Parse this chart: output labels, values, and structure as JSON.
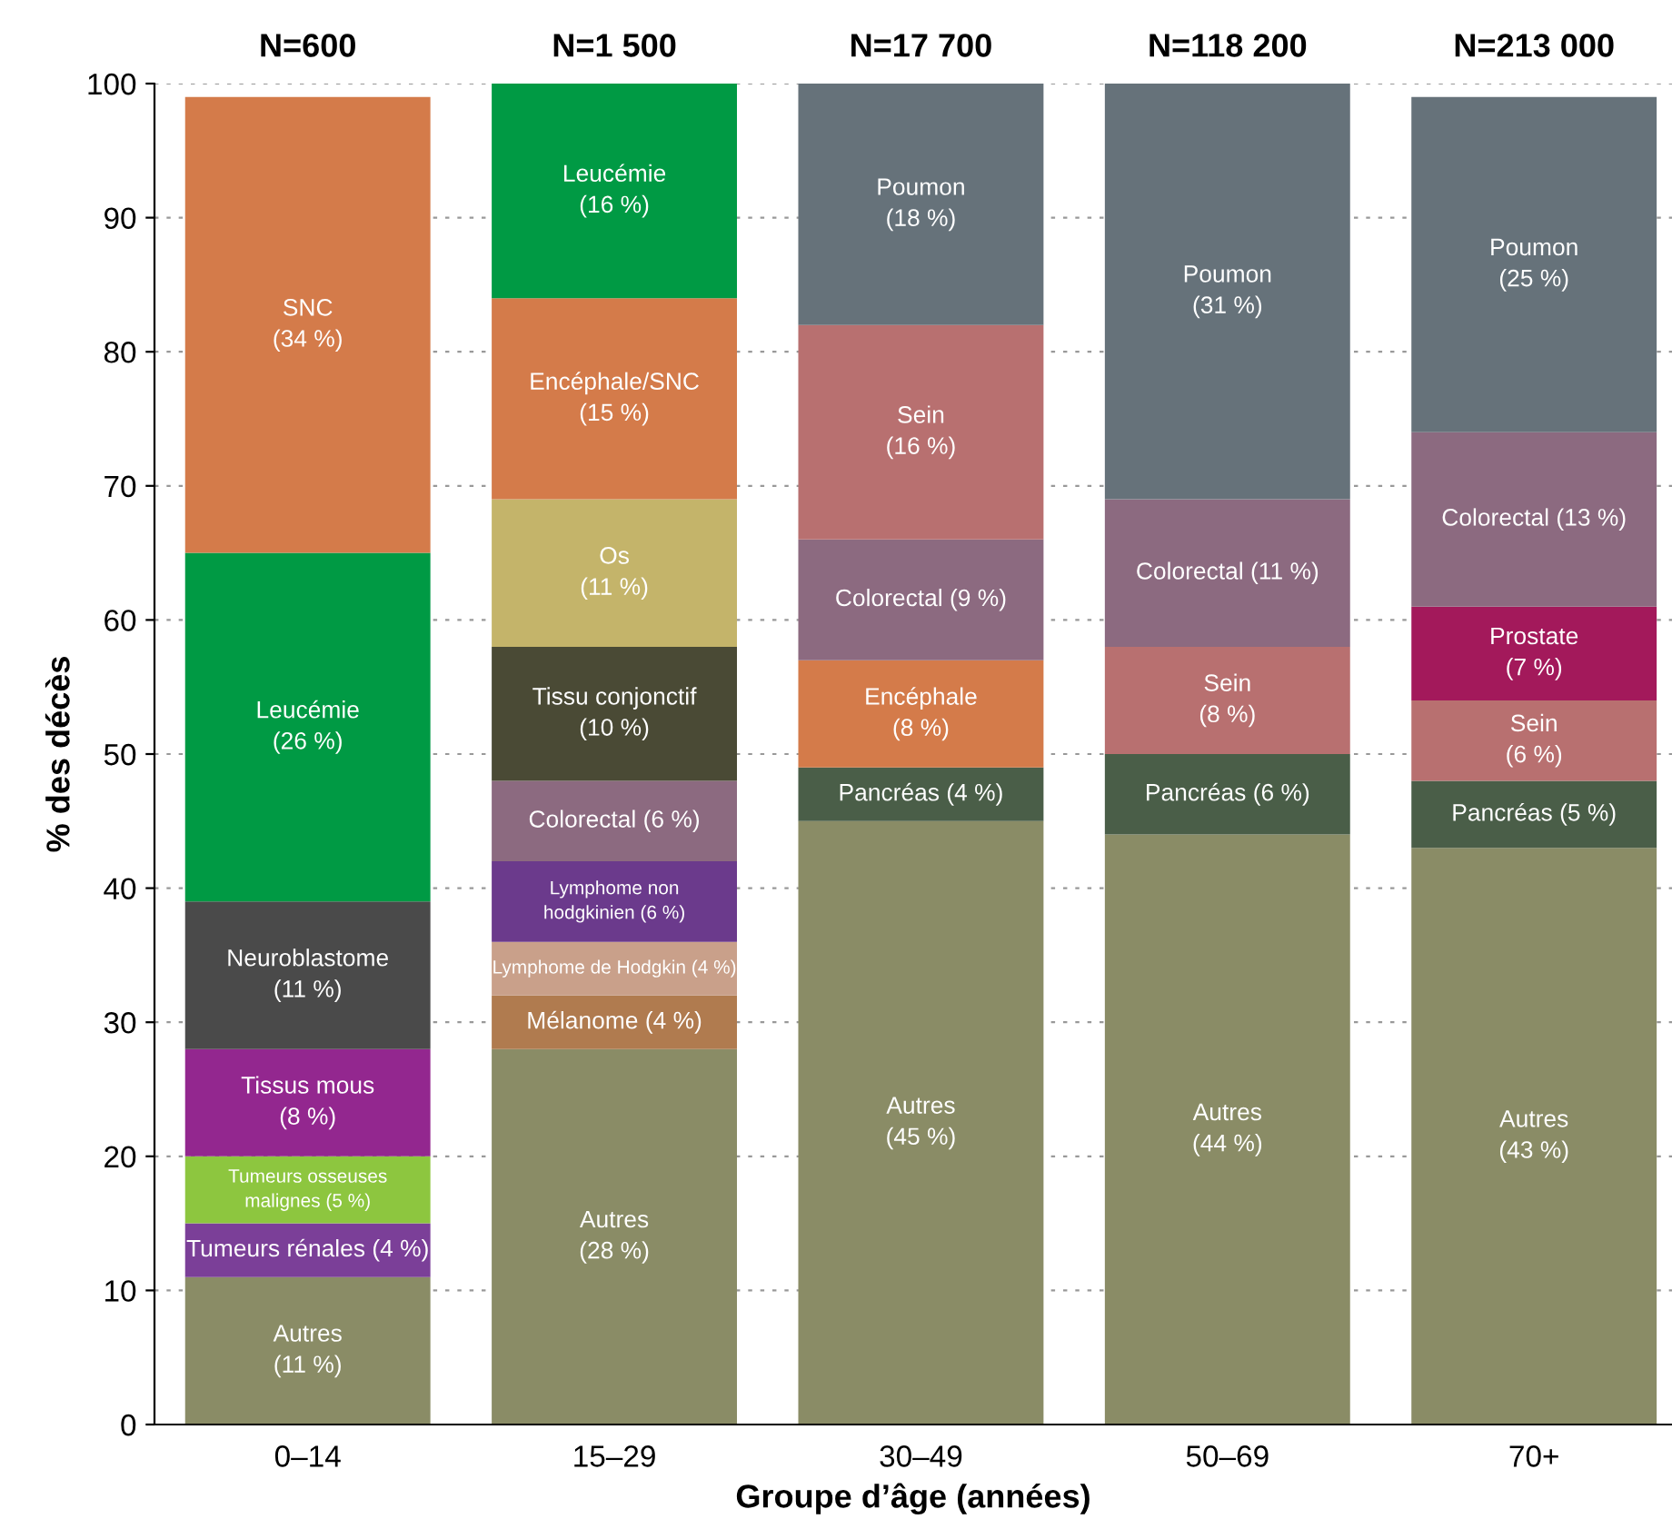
{
  "chart_data": {
    "type": "bar",
    "stacked": true,
    "categories": [
      "0–14",
      "15–29",
      "30–49",
      "50–69",
      "70+"
    ],
    "xlabel": "Groupe d’âge (années)",
    "ylabel": "% des décès",
    "ylim": [
      0,
      100
    ],
    "yticks": [
      0,
      10,
      20,
      30,
      40,
      50,
      60,
      70,
      80,
      90,
      100
    ],
    "grid": "y",
    "annotations": [
      "N=600",
      "N=1 500",
      "N=17 700",
      "N=118 200",
      "N=213 000"
    ],
    "series": [
      {
        "values": [
          11,
          28,
          45,
          44,
          43
        ],
        "colors": [
          "#8a8c66",
          "#8a8c66",
          "#8a8c66",
          "#8a8c66",
          "#8a8c66"
        ],
        "value_labels": [
          "Autres\n(11 %)",
          "Autres\n(28 %)",
          "Autres\n(45 %)",
          "Autres\n(44 %)",
          "Autres\n(43 %)"
        ]
      },
      {
        "values": [
          4,
          4,
          4,
          6,
          5
        ],
        "colors": [
          "#7b3f98",
          "#b07b4f",
          "#4a5e48",
          "#4a5e48",
          "#4a5e48"
        ],
        "value_labels": [
          "Tumeurs rénales (4 %)",
          "Mélanome (4 %)",
          "Pancréas (4 %)",
          "Pancréas (6 %)",
          "Pancréas (5 %)"
        ]
      },
      {
        "values": [
          5,
          4,
          8,
          8,
          6
        ],
        "colors": [
          "#8dc63f",
          "#c9a08a",
          "#d47b4a",
          "#b87070",
          "#b87070"
        ],
        "value_labels": [
          "Tumeurs osseuses\nmalignes (5 %)",
          "Lymphome de Hodgkin (4 %)",
          "Encéphale\n(8 %)",
          "Sein\n(8 %)",
          "Sein\n(6 %)"
        ]
      },
      {
        "values": [
          8,
          6,
          9,
          11,
          7
        ],
        "colors": [
          "#93278f",
          "#6b3a8c",
          "#8c6a80",
          "#8c6a80",
          "#a3195b"
        ],
        "value_labels": [
          "Tissus mous\n(8 %)",
          "Lymphome non\nhodgkinien (6 %)",
          "Colorectal (9 %)",
          "Colorectal (11 %)",
          "Prostate\n(7 %)"
        ]
      },
      {
        "values": [
          11,
          6,
          16,
          31,
          13
        ],
        "colors": [
          "#4a4a4a",
          "#8c6a80",
          "#b87070",
          "#66727a",
          "#8c6a80"
        ],
        "value_labels": [
          "Neuroblastome\n(11 %)",
          "Colorectal (6 %)",
          "Sein\n(16 %)",
          "Poumon\n(31 %)",
          "Colorectal (13 %)"
        ]
      },
      {
        "values": [
          26,
          10,
          18,
          null,
          25
        ],
        "colors": [
          "#009a44",
          "#4a4a35",
          "#66727a",
          null,
          "#66727a"
        ],
        "value_labels": [
          "Leucémie\n(26 %)",
          "Tissu conjonctif\n(10 %)",
          "Poumon\n(18 %)",
          null,
          "Poumon\n(25 %)"
        ]
      },
      {
        "values": [
          34,
          11,
          null,
          null,
          null
        ],
        "colors": [
          "#d47b4a",
          "#c4b46a",
          null,
          null,
          null
        ],
        "value_labels": [
          "SNC\n(34 %)",
          "Os\n(11 %)",
          null,
          null,
          null
        ]
      },
      {
        "values": [
          null,
          15,
          null,
          null,
          null
        ],
        "colors": [
          null,
          "#d47b4a",
          null,
          null,
          null
        ],
        "value_labels": [
          null,
          "Encéphale/SNC\n(15 %)",
          null,
          null,
          null
        ]
      },
      {
        "values": [
          null,
          16,
          null,
          null,
          null
        ],
        "colors": [
          null,
          "#009a44",
          null,
          null,
          null
        ],
        "value_labels": [
          null,
          "Leucémie\n(16 %)",
          null,
          null,
          null
        ]
      }
    ]
  }
}
